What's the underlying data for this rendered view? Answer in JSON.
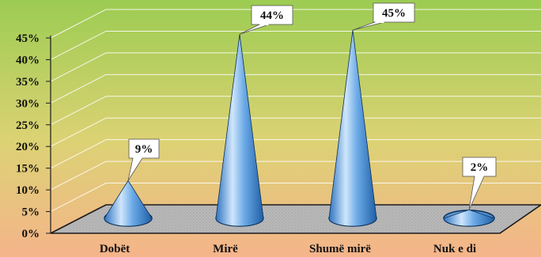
{
  "chart_data": {
    "type": "bar",
    "shape": "cone-3d",
    "categories": [
      "Dobët",
      "Mirë",
      "Shumë mirë",
      "Nuk e di"
    ],
    "values": [
      9,
      44,
      45,
      2
    ],
    "data_labels": [
      "9%",
      "44%",
      "45%",
      "2%"
    ],
    "y_ticks": [
      "0%",
      "5%",
      "10%",
      "15%",
      "20%",
      "25%",
      "30%",
      "35%",
      "40%",
      "45%"
    ],
    "ylim": [
      0,
      45
    ],
    "grid": true,
    "legend": "none",
    "colors": {
      "background_top": "#9ccc52",
      "background_bottom": "#f5b48a",
      "cone_light": "#cfe6fb",
      "cone_mid": "#6aa9e6",
      "cone_dark": "#1f5fa6",
      "floor": "#b7b7b7",
      "grid": "#ffffff"
    }
  }
}
